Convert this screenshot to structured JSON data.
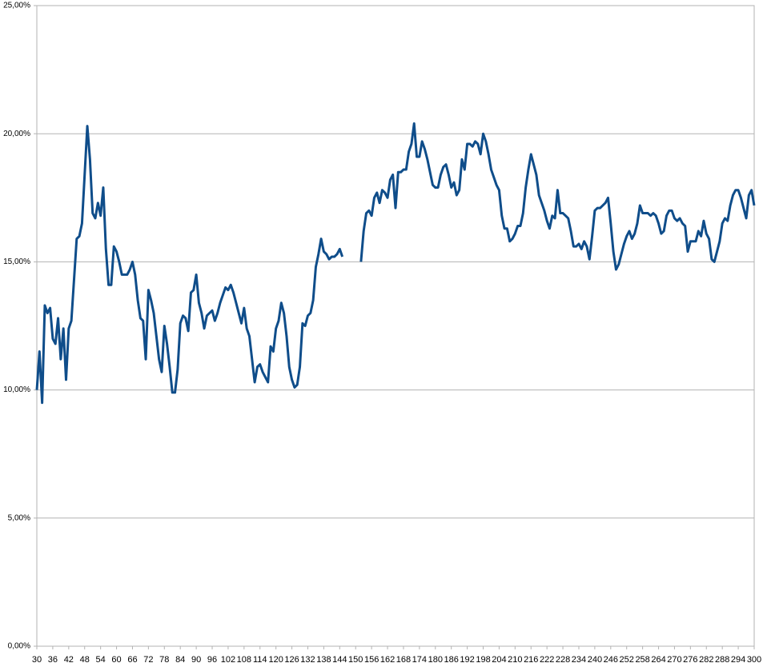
{
  "chart_data": {
    "type": "line",
    "x": [
      30,
      31,
      32,
      33,
      34,
      35,
      36,
      37,
      38,
      39,
      40,
      41,
      42,
      43,
      44,
      45,
      46,
      47,
      48,
      49,
      50,
      51,
      52,
      53,
      54,
      55,
      56,
      57,
      58,
      59,
      60,
      61,
      62,
      63,
      64,
      65,
      66,
      67,
      68,
      69,
      70,
      71,
      72,
      73,
      74,
      75,
      76,
      77,
      78,
      79,
      80,
      81,
      82,
      83,
      84,
      85,
      86,
      87,
      88,
      89,
      90,
      91,
      92,
      93,
      94,
      95,
      96,
      97,
      98,
      99,
      100,
      101,
      102,
      103,
      104,
      105,
      106,
      107,
      108,
      109,
      110,
      111,
      112,
      113,
      114,
      115,
      116,
      117,
      118,
      119,
      120,
      121,
      122,
      123,
      124,
      125,
      126,
      127,
      128,
      129,
      130,
      131,
      132,
      133,
      134,
      135,
      136,
      137,
      138,
      139,
      140,
      141,
      142,
      143,
      144,
      145,
      146,
      147,
      148,
      149,
      150,
      151,
      152,
      153,
      154,
      155,
      156,
      157,
      158,
      159,
      160,
      161,
      162,
      163,
      164,
      165,
      166,
      167,
      168,
      169,
      170,
      171,
      172,
      173,
      174,
      175,
      176,
      177,
      178,
      179,
      180,
      181,
      182,
      183,
      184,
      185,
      186,
      187,
      188,
      189,
      190,
      191,
      192,
      193,
      194,
      195,
      196,
      197,
      198,
      199,
      200,
      201,
      202,
      203,
      204,
      205,
      206,
      207,
      208,
      209,
      210,
      211,
      212,
      213,
      214,
      215,
      216,
      217,
      218,
      219,
      220,
      221,
      222,
      223,
      224,
      225,
      226,
      227,
      228,
      229,
      230,
      231,
      232,
      233,
      234,
      235,
      236,
      237,
      238,
      239,
      240,
      241,
      242,
      243,
      244,
      245,
      246,
      247,
      248,
      249,
      250,
      251,
      252,
      253,
      254,
      255,
      256,
      257,
      258,
      259,
      260,
      261,
      262,
      263,
      264,
      265,
      266,
      267,
      268,
      269,
      270,
      271,
      272,
      273,
      274,
      275,
      276,
      277,
      278,
      279,
      280,
      281,
      282,
      283,
      284,
      285,
      286,
      287,
      288,
      289,
      290,
      291,
      292,
      293,
      294,
      295,
      296,
      297,
      298,
      299,
      300
    ],
    "series": [
      {
        "color": "#0f4d8a",
        "values": [
          10.0,
          11.5,
          9.5,
          13.3,
          13.0,
          13.2,
          12.0,
          11.8,
          12.8,
          11.2,
          12.4,
          10.4,
          12.4,
          12.7,
          14.3,
          15.9,
          16.0,
          16.5,
          18.4,
          20.3,
          19.0,
          16.9,
          16.7,
          17.3,
          16.8,
          17.9,
          15.5,
          14.1,
          14.1,
          15.6,
          15.4,
          15.0,
          14.5,
          14.5,
          14.5,
          14.7,
          15.0,
          14.5,
          13.5,
          12.8,
          12.7,
          11.2,
          13.9,
          13.5,
          13.0,
          12.1,
          11.2,
          10.7,
          12.5,
          11.8,
          10.9,
          9.9,
          9.9,
          10.8,
          12.6,
          12.9,
          12.8,
          12.3,
          13.8,
          13.9,
          14.5,
          13.4,
          13.0,
          12.4,
          12.9,
          13.0,
          13.1,
          12.7,
          13.0,
          13.4,
          13.7,
          14.0,
          13.9,
          14.1,
          13.8,
          13.4,
          13.0,
          12.6,
          13.2,
          12.4,
          12.1,
          11.2,
          10.3,
          10.9,
          11.0,
          10.7,
          10.5,
          10.3,
          11.7,
          11.5,
          12.4,
          12.7,
          13.4,
          13.0,
          12.1,
          10.9,
          10.4,
          10.1,
          10.2,
          10.9,
          12.6,
          12.5,
          12.9,
          13.0,
          13.5,
          14.8,
          15.3,
          15.9,
          15.4,
          15.3,
          15.1,
          15.2,
          15.2,
          15.3,
          15.5,
          15.2,
          null,
          null,
          null,
          null,
          null,
          null,
          15.0,
          16.2,
          16.9,
          17.0,
          16.8,
          17.5,
          17.7,
          17.3,
          17.8,
          17.7,
          17.5,
          18.2,
          18.4,
          17.1,
          18.5,
          18.5,
          18.6,
          18.6,
          19.3,
          19.6,
          20.4,
          19.1,
          19.1,
          19.7,
          19.4,
          19.0,
          18.5,
          18.0,
          17.9,
          17.9,
          18.4,
          18.7,
          18.8,
          18.4,
          17.9,
          18.1,
          17.6,
          17.8,
          19.0,
          18.6,
          19.6,
          19.6,
          19.5,
          19.7,
          19.6,
          19.2,
          20.0,
          19.7,
          19.2,
          18.6,
          18.3,
          18.0,
          17.8,
          16.8,
          16.3,
          16.3,
          15.8,
          15.9,
          16.1,
          16.4,
          16.4,
          16.9,
          17.9,
          18.6,
          19.2,
          18.8,
          18.4,
          17.6,
          17.3,
          17.0,
          16.6,
          16.3,
          16.8,
          16.7,
          17.8,
          16.9,
          16.9,
          16.8,
          16.7,
          16.2,
          15.6,
          15.6,
          15.7,
          15.5,
          15.8,
          15.6,
          15.1,
          16.0,
          17.0,
          17.1,
          17.1,
          17.2,
          17.3,
          17.5,
          16.5,
          15.4,
          14.7,
          14.9,
          15.3,
          15.7,
          16.0,
          16.2,
          15.9,
          16.1,
          16.5,
          17.2,
          16.9,
          16.9,
          16.9,
          16.8,
          16.9,
          16.8,
          16.5,
          16.1,
          16.2,
          16.8,
          17.0,
          17.0,
          16.7,
          16.6,
          16.7,
          16.5,
          16.4,
          15.4,
          15.8,
          15.8,
          15.8,
          16.2,
          16.0,
          16.6,
          16.1,
          15.9,
          15.1,
          15.0,
          15.4,
          15.8,
          16.5,
          16.7,
          16.6,
          17.2,
          17.6,
          17.8,
          17.8,
          17.5,
          17.1,
          16.7,
          17.6,
          17.8,
          17.2
        ]
      }
    ],
    "xlim": [
      30,
      300
    ],
    "xticks": [
      30,
      36,
      42,
      48,
      54,
      60,
      66,
      72,
      78,
      84,
      90,
      96,
      102,
      108,
      114,
      120,
      126,
      132,
      138,
      144,
      150,
      156,
      162,
      168,
      174,
      180,
      186,
      192,
      198,
      204,
      210,
      216,
      222,
      228,
      234,
      240,
      246,
      252,
      258,
      264,
      270,
      276,
      282,
      288,
      294,
      300
    ],
    "ylim": [
      0,
      25
    ],
    "yticks": [
      {
        "value": 0,
        "label": "0,00%"
      },
      {
        "value": 5,
        "label": "5,00%"
      },
      {
        "value": 10,
        "label": "10,00%"
      },
      {
        "value": 15,
        "label": "15,00%"
      },
      {
        "value": 20,
        "label": "20,00%"
      },
      {
        "value": 25,
        "label": "25,00%"
      }
    ],
    "grid": true
  }
}
